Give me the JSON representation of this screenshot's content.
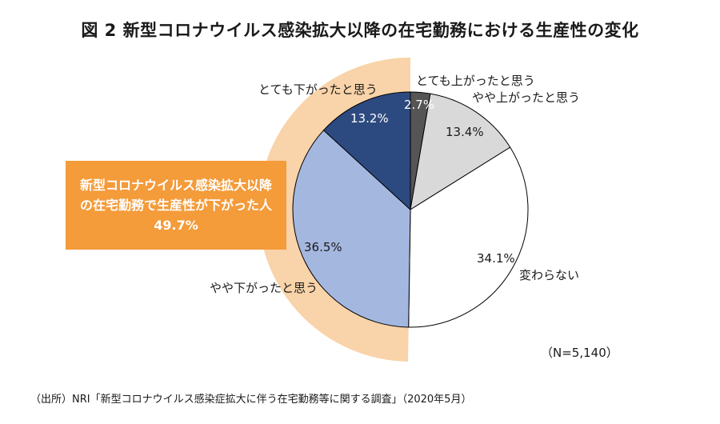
{
  "title": "図 2 新型コロナウイルス感染拡大以降の在宅勤務における生産性の変化",
  "callout": {
    "line1": "新型コロナウイルス感染拡大以降",
    "line2": "の在宅勤務で生産性が下がった人",
    "line3": "49.7%"
  },
  "n_label": "（N=5,140）",
  "source": "（出所）NRI「新型コロナウイルス感染症拡大に伴う在宅勤務等に関する調査」（2020年5月）",
  "chart_data": {
    "type": "pie",
    "title": "図 2 新型コロナウイルス感染拡大以降の在宅勤務における生産性の変化",
    "slices": [
      {
        "label": "とても上がったと思う",
        "value": 2.7,
        "value_label": "2.7%",
        "color": "#555555"
      },
      {
        "label": "やや上がったと思う",
        "value": 13.4,
        "value_label": "13.4%",
        "color": "#d9d9d9"
      },
      {
        "label": "変わらない",
        "value": 34.1,
        "value_label": "34.1%",
        "color": "#ffffff"
      },
      {
        "label": "やや下がったと思う",
        "value": 36.5,
        "value_label": "36.5%",
        "color": "#a4b7df"
      },
      {
        "label": "とても下がったと思う",
        "value": 13.2,
        "value_label": "13.2%",
        "color": "#2d4a80"
      }
    ],
    "highlight": {
      "label": "新型コロナウイルス感染拡大以降の在宅勤務で生産性が下がった人",
      "value": 49.7,
      "color": "#f9d3a9"
    },
    "n": "N=5,140",
    "start_angle_deg": 0,
    "direction": "clockwise"
  }
}
